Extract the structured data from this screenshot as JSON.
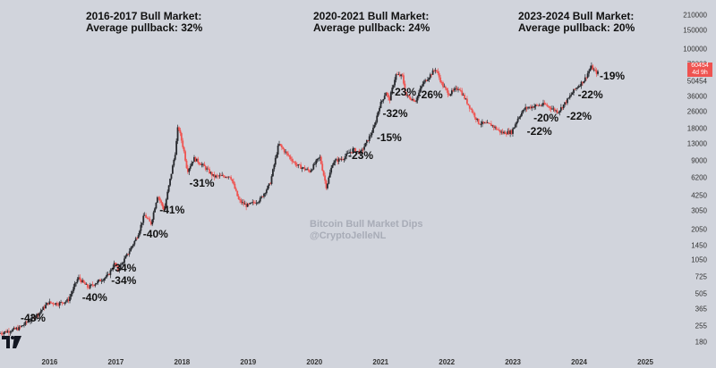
{
  "headers": [
    {
      "title": "2016-2017 Bull Market:",
      "subtitle": "Average pullback: 32%"
    },
    {
      "title": "2020-2021 Bull Market:",
      "subtitle": "Average pullback: 24%"
    },
    {
      "title": "2023-2024 Bull Market:",
      "subtitle": "Average pullback: 20%"
    }
  ],
  "watermark": {
    "line1": "Bitcoin Bull Market Dips",
    "line2": "@CryptoJelleNL"
  },
  "price_tag": {
    "price": "60454",
    "countdown": "4d 9h"
  },
  "colors": {
    "background": "#d1d4dc",
    "up": "#26282d",
    "down": "#ef5350",
    "price_tag": "#ef5350"
  },
  "logo": "tradingview-logo",
  "chart_data": {
    "type": "candlestick",
    "yscale": "log",
    "ylim": [
      150,
      260000
    ],
    "xlim": [
      2015.25,
      2025.5
    ],
    "y_ticks": [
      180,
      255,
      365,
      505,
      725,
      1050,
      1450,
      2050,
      3050,
      4250,
      6200,
      9000,
      13000,
      18000,
      26000,
      36000,
      50454,
      72000,
      100000,
      150000,
      210000
    ],
    "y_tick_labels": [
      "180",
      "255",
      "365",
      "505",
      "725",
      "1050",
      "1450",
      "2050",
      "3050",
      "4250",
      "6200",
      "9000",
      "13000",
      "18000",
      "26000",
      "36000",
      "50454",
      "72000",
      "100000",
      "150000",
      "210000"
    ],
    "x_ticks": [
      2016,
      2017,
      2018,
      2019,
      2020,
      2021,
      2022,
      2023,
      2024,
      2025
    ],
    "x_tick_labels": [
      "2016",
      "2017",
      "2018",
      "2019",
      "2020",
      "2021",
      "2022",
      "2023",
      "2024",
      "2025"
    ],
    "price_path": [
      [
        2015.25,
        215
      ],
      [
        2015.55,
        240
      ],
      [
        2015.85,
        330
      ],
      [
        2016.0,
        420
      ],
      [
        2016.15,
        410
      ],
      [
        2016.3,
        440
      ],
      [
        2016.45,
        720
      ],
      [
        2016.6,
        580
      ],
      [
        2016.9,
        750
      ],
      [
        2017.0,
        980
      ],
      [
        2017.05,
        850
      ],
      [
        2017.2,
        1200
      ],
      [
        2017.35,
        1800
      ],
      [
        2017.45,
        2800
      ],
      [
        2017.55,
        2300
      ],
      [
        2017.65,
        4300
      ],
      [
        2017.75,
        3100
      ],
      [
        2017.85,
        6500
      ],
      [
        2017.92,
        11000
      ],
      [
        2017.96,
        19500
      ],
      [
        2018.05,
        11000
      ],
      [
        2018.1,
        7200
      ],
      [
        2018.2,
        9500
      ],
      [
        2018.35,
        8000
      ],
      [
        2018.5,
        6400
      ],
      [
        2018.75,
        6500
      ],
      [
        2018.88,
        3800
      ],
      [
        2019.0,
        3400
      ],
      [
        2019.2,
        3900
      ],
      [
        2019.35,
        5500
      ],
      [
        2019.48,
        13000
      ],
      [
        2019.6,
        10500
      ],
      [
        2019.75,
        8200
      ],
      [
        2019.95,
        7200
      ],
      [
        2020.1,
        9800
      ],
      [
        2020.2,
        5100
      ],
      [
        2020.3,
        8800
      ],
      [
        2020.45,
        9500
      ],
      [
        2020.6,
        11500
      ],
      [
        2020.72,
        10700
      ],
      [
        2020.85,
        15000
      ],
      [
        2020.92,
        18500
      ],
      [
        2021.0,
        29000
      ],
      [
        2021.1,
        40000
      ],
      [
        2021.15,
        33000
      ],
      [
        2021.25,
        58000
      ],
      [
        2021.35,
        56000
      ],
      [
        2021.4,
        37000
      ],
      [
        2021.55,
        33000
      ],
      [
        2021.65,
        47000
      ],
      [
        2021.85,
        66000
      ],
      [
        2021.95,
        47000
      ],
      [
        2022.05,
        38000
      ],
      [
        2022.2,
        44000
      ],
      [
        2022.35,
        30000
      ],
      [
        2022.5,
        20500
      ],
      [
        2022.7,
        19500
      ],
      [
        2022.85,
        16500
      ],
      [
        2023.0,
        16800
      ],
      [
        2023.1,
        23000
      ],
      [
        2023.2,
        28000
      ],
      [
        2023.35,
        29500
      ],
      [
        2023.5,
        30500
      ],
      [
        2023.7,
        26000
      ],
      [
        2023.85,
        34000
      ],
      [
        2023.95,
        42000
      ],
      [
        2024.1,
        52000
      ],
      [
        2024.2,
        69000
      ],
      [
        2024.27,
        61000
      ],
      [
        2024.3,
        60454
      ]
    ],
    "pullbacks": [
      {
        "label": "-43%",
        "x": 2015.75,
        "y": 300
      },
      {
        "label": "-40%",
        "x": 2016.68,
        "y": 470
      },
      {
        "label": "-34%",
        "x": 2017.12,
        "y": 880
      },
      {
        "label": "-34%",
        "x": 2017.12,
        "y": 680
      },
      {
        "label": "-40%",
        "x": 2017.6,
        "y": 1850
      },
      {
        "label": "-41%",
        "x": 2017.85,
        "y": 3100
      },
      {
        "label": "-31%",
        "x": 2018.3,
        "y": 5600
      },
      {
        "label": "-23%",
        "x": 2020.7,
        "y": 10200
      },
      {
        "label": "-15%",
        "x": 2021.13,
        "y": 14800
      },
      {
        "label": "-32%",
        "x": 2021.22,
        "y": 25000
      },
      {
        "label": "-23%",
        "x": 2021.35,
        "y": 40000
      },
      {
        "label": "-26%",
        "x": 2021.75,
        "y": 37500
      },
      {
        "label": "-22%",
        "x": 2023.4,
        "y": 17200
      },
      {
        "label": "-20%",
        "x": 2023.5,
        "y": 23000
      },
      {
        "label": "-22%",
        "x": 2024.0,
        "y": 23500
      },
      {
        "label": "-22%",
        "x": 2024.17,
        "y": 38000
      },
      {
        "label": "-19%",
        "x": 2024.5,
        "y": 56000
      }
    ]
  }
}
